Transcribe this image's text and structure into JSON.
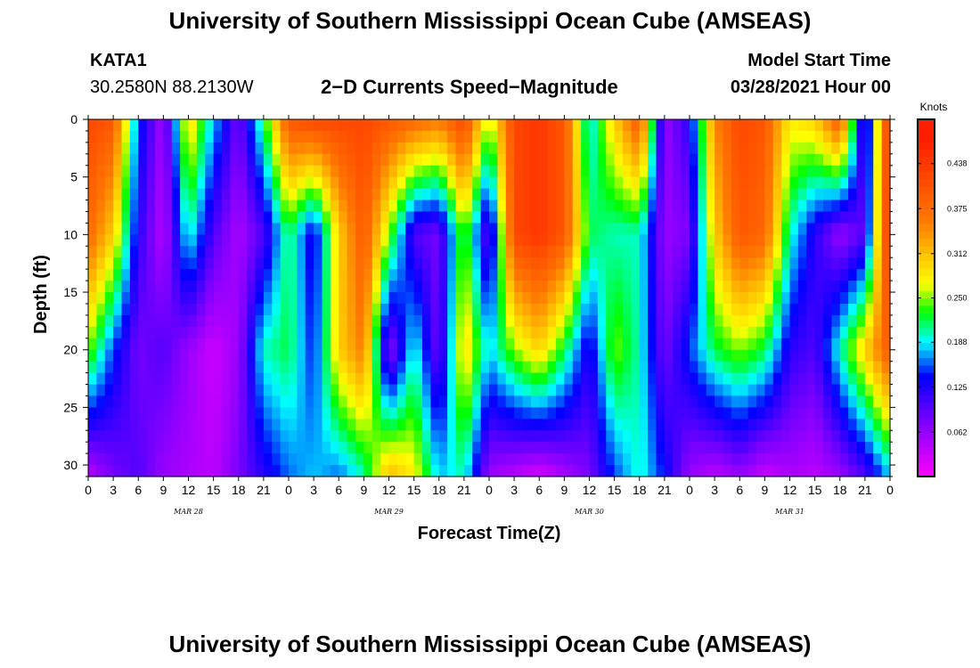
{
  "header": {
    "title": "University of Southern Mississippi Ocean Cube (AMSEAS)",
    "station": "KATA1",
    "coords": "30.2580N  88.2130W",
    "subtitle": "2−D Currents Speed−Magnitude",
    "model_start_label": "Model Start Time",
    "model_start_value": "03/28/2021 Hour 00"
  },
  "footer": {
    "title": "University of Southern Mississippi Ocean Cube (AMSEAS)"
  },
  "chart_data": {
    "type": "heatmap",
    "title": "2−D Currents Speed−Magnitude",
    "xlabel": "Forecast Time(Z)",
    "ylabel": "Depth (ft)",
    "xlim": [
      0,
      96
    ],
    "ylim": [
      0,
      31
    ],
    "y_inverted": true,
    "x_tick_labels": [
      "0",
      "3",
      "6",
      "9",
      "12",
      "15",
      "18",
      "21",
      "0",
      "3",
      "6",
      "9",
      "12",
      "15",
      "18",
      "21",
      "0",
      "3",
      "6",
      "9",
      "12",
      "15",
      "18",
      "21",
      "0",
      "3",
      "6",
      "9",
      "12",
      "15",
      "18",
      "21",
      "0"
    ],
    "date_labels": [
      {
        "hour": 12,
        "label": "MAR 28"
      },
      {
        "hour": 36,
        "label": "MAR 29"
      },
      {
        "hour": 60,
        "label": "MAR 30"
      },
      {
        "hour": 84,
        "label": "MAR 31"
      }
    ],
    "y_ticks": [
      0,
      5,
      10,
      15,
      20,
      25,
      30
    ],
    "colorbar": {
      "unit": "Knots",
      "min": 0.0,
      "max": 0.5,
      "tick_values": [
        0.062,
        0.125,
        0.188,
        0.25,
        0.312,
        0.375,
        0.438
      ],
      "tick_labels": [
        "0.062",
        "0.125",
        "0.188",
        "0.250",
        "0.312",
        "0.375",
        "0.438"
      ]
    },
    "depths": [
      0,
      10,
      20,
      31
    ],
    "hours": [
      0,
      3,
      6,
      9,
      12,
      15,
      18,
      21,
      24,
      27,
      30,
      33,
      36,
      39,
      42,
      45,
      48,
      51,
      54,
      57,
      60,
      63,
      66,
      69,
      72,
      75,
      78,
      81,
      84,
      87,
      90,
      93,
      96
    ],
    "speed_knots": [
      [
        0.42,
        0.4,
        0.15,
        0.05,
        0.3,
        0.18,
        0.08,
        0.22,
        0.4,
        0.42,
        0.42,
        0.42,
        0.4,
        0.38,
        0.36,
        0.42,
        0.25,
        0.42,
        0.44,
        0.4,
        0.18,
        0.3,
        0.4,
        0.06,
        0.12,
        0.35,
        0.42,
        0.4,
        0.28,
        0.3,
        0.4,
        0.08,
        0.46
      ],
      [
        0.38,
        0.3,
        0.12,
        0.04,
        0.2,
        0.1,
        0.05,
        0.1,
        0.22,
        0.12,
        0.3,
        0.4,
        0.25,
        0.1,
        0.08,
        0.25,
        0.08,
        0.42,
        0.44,
        0.4,
        0.22,
        0.2,
        0.2,
        0.06,
        0.08,
        0.3,
        0.4,
        0.38,
        0.2,
        0.12,
        0.06,
        0.1,
        0.46
      ],
      [
        0.25,
        0.15,
        0.08,
        0.1,
        0.06,
        0.03,
        0.06,
        0.2,
        0.22,
        0.14,
        0.3,
        0.36,
        0.06,
        0.2,
        0.08,
        0.3,
        0.18,
        0.25,
        0.3,
        0.22,
        0.12,
        0.25,
        0.2,
        0.08,
        0.15,
        0.22,
        0.25,
        0.22,
        0.12,
        0.1,
        0.2,
        0.3,
        0.4
      ],
      [
        0.04,
        0.08,
        0.1,
        0.06,
        0.05,
        0.04,
        0.08,
        0.12,
        0.16,
        0.18,
        0.16,
        0.2,
        0.32,
        0.28,
        0.18,
        0.2,
        0.06,
        0.04,
        0.02,
        0.05,
        0.08,
        0.15,
        0.2,
        0.14,
        0.06,
        0.04,
        0.06,
        0.03,
        0.05,
        0.04,
        0.06,
        0.1,
        0.18
      ]
    ]
  }
}
